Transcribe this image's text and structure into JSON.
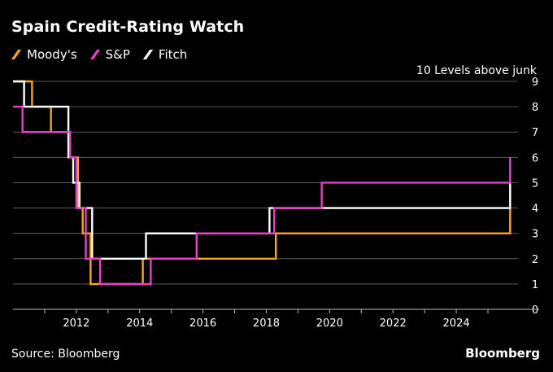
{
  "title": "Spain Credit-Rating Watch",
  "source": "Source: Bloomberg",
  "brand": "Bloomberg",
  "colors": {
    "moodys": "#F5A623",
    "sp": "#E642C8",
    "fitch": "#FFFFFF",
    "grid": "#5a5a5a",
    "background": "#000000"
  },
  "chart_data": {
    "type": "line",
    "ylabel": "10 Levels above junk",
    "ylim": [
      0,
      9
    ],
    "xlim": [
      2010.0,
      2025.95
    ],
    "y_ticks": [
      "0",
      "1",
      "2",
      "3",
      "4",
      "5",
      "6",
      "7",
      "8",
      "9"
    ],
    "x_ticks": [
      "2012",
      "2014",
      "2016",
      "2018",
      "2020",
      "2022",
      "2024"
    ],
    "legend": "top-left",
    "series": [
      {
        "name": "Moody's",
        "color": "#F5A623",
        "x": [
          2010.0,
          2010.6,
          2010.6,
          2011.2,
          2011.2,
          2011.8,
          2011.8,
          2012.05,
          2012.05,
          2012.2,
          2012.2,
          2012.45,
          2012.45,
          2012.9,
          2012.9,
          2014.1,
          2014.1,
          2018.3,
          2018.3,
          2025.7,
          2025.7
        ],
        "y": [
          9,
          9,
          8,
          8,
          7,
          7,
          6,
          6,
          4,
          4,
          3,
          3,
          1,
          1,
          1,
          1,
          2,
          2,
          3,
          3,
          4
        ]
      },
      {
        "name": "S&P",
        "color": "#E642C8",
        "x": [
          2010.0,
          2010.3,
          2010.3,
          2011.2,
          2011.2,
          2011.8,
          2011.8,
          2012.0,
          2012.0,
          2012.3,
          2012.3,
          2012.75,
          2012.75,
          2014.35,
          2014.35,
          2015.8,
          2015.8,
          2018.25,
          2018.25,
          2019.75,
          2019.75,
          2025.7,
          2025.7
        ],
        "y": [
          8,
          8,
          7,
          7,
          7,
          7,
          6,
          6,
          4,
          4,
          2,
          2,
          1,
          1,
          2,
          2,
          3,
          3,
          4,
          4,
          5,
          5,
          6
        ]
      },
      {
        "name": "Fitch",
        "color": "#FFFFFF",
        "x": [
          2010.0,
          2010.35,
          2010.35,
          2011.75,
          2011.75,
          2011.9,
          2011.9,
          2012.1,
          2012.1,
          2012.5,
          2012.5,
          2014.2,
          2014.2,
          2018.1,
          2018.1,
          2025.7,
          2025.7
        ],
        "y": [
          9,
          9,
          8,
          8,
          6,
          6,
          5,
          5,
          4,
          4,
          2,
          2,
          3,
          3,
          4,
          4,
          5
        ]
      }
    ]
  }
}
